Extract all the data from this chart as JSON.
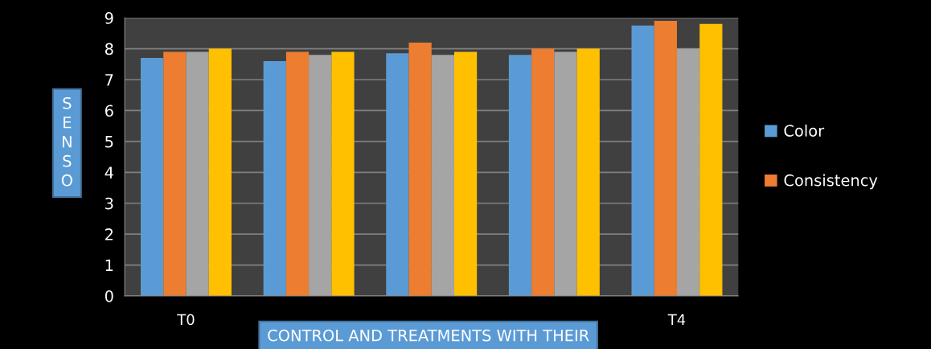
{
  "chart_data": {
    "type": "bar",
    "xlabel": "CONTROL AND TREATMENTS WITH THEIR",
    "ylabel": "SENSO",
    "categories": [
      "T0",
      null,
      null,
      null,
      "T4"
    ],
    "series": [
      {
        "name": "Color",
        "color": "#5b9bd5",
        "values": [
          7.7,
          7.6,
          7.85,
          7.8,
          8.75
        ]
      },
      {
        "name": "Consistency",
        "color": "#ed7d31",
        "values": [
          7.9,
          7.9,
          8.2,
          8.0,
          8.9
        ]
      },
      {
        "color": "#a5a5a5",
        "values": [
          7.9,
          7.8,
          7.8,
          7.9,
          8.0
        ]
      },
      {
        "color": "#ffc000",
        "values": [
          8.0,
          7.9,
          7.9,
          8.0,
          8.8
        ]
      }
    ],
    "ylim": [
      0,
      9
    ],
    "yticks": [
      0,
      1,
      2,
      3,
      4,
      5,
      6,
      7,
      8,
      9
    ],
    "grid": "y",
    "legend": "right"
  }
}
